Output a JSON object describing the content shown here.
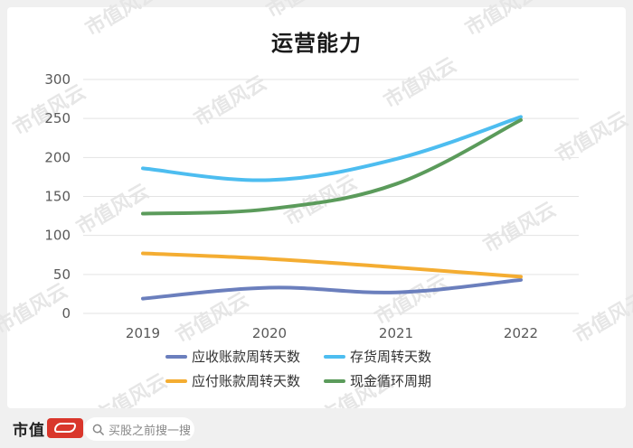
{
  "chart_data": {
    "type": "line",
    "title": "运营能力",
    "categories": [
      "2019",
      "2020",
      "2021",
      "2022"
    ],
    "ylim": [
      0,
      300
    ],
    "yticks": [
      0,
      50,
      100,
      150,
      200,
      250,
      300
    ],
    "grid": true,
    "legend_position": "bottom",
    "series": [
      {
        "name": "应收账款周转天数",
        "values": [
          19,
          33,
          27,
          43
        ],
        "color": "#6b7fbd"
      },
      {
        "name": "存货周转天数",
        "values": [
          186,
          171,
          198,
          252
        ],
        "color": "#4dbdf0"
      },
      {
        "name": "应付账款周转天数",
        "values": [
          77,
          70,
          59,
          47
        ],
        "color": "#f4ad32"
      },
      {
        "name": "现金循环周期",
        "values": [
          128,
          134,
          166,
          248
        ],
        "color": "#5b9b5b"
      }
    ]
  },
  "footer": {
    "brand": "市值",
    "search_placeholder": "买股之前搜一搜"
  },
  "watermark_text": "市值风云"
}
